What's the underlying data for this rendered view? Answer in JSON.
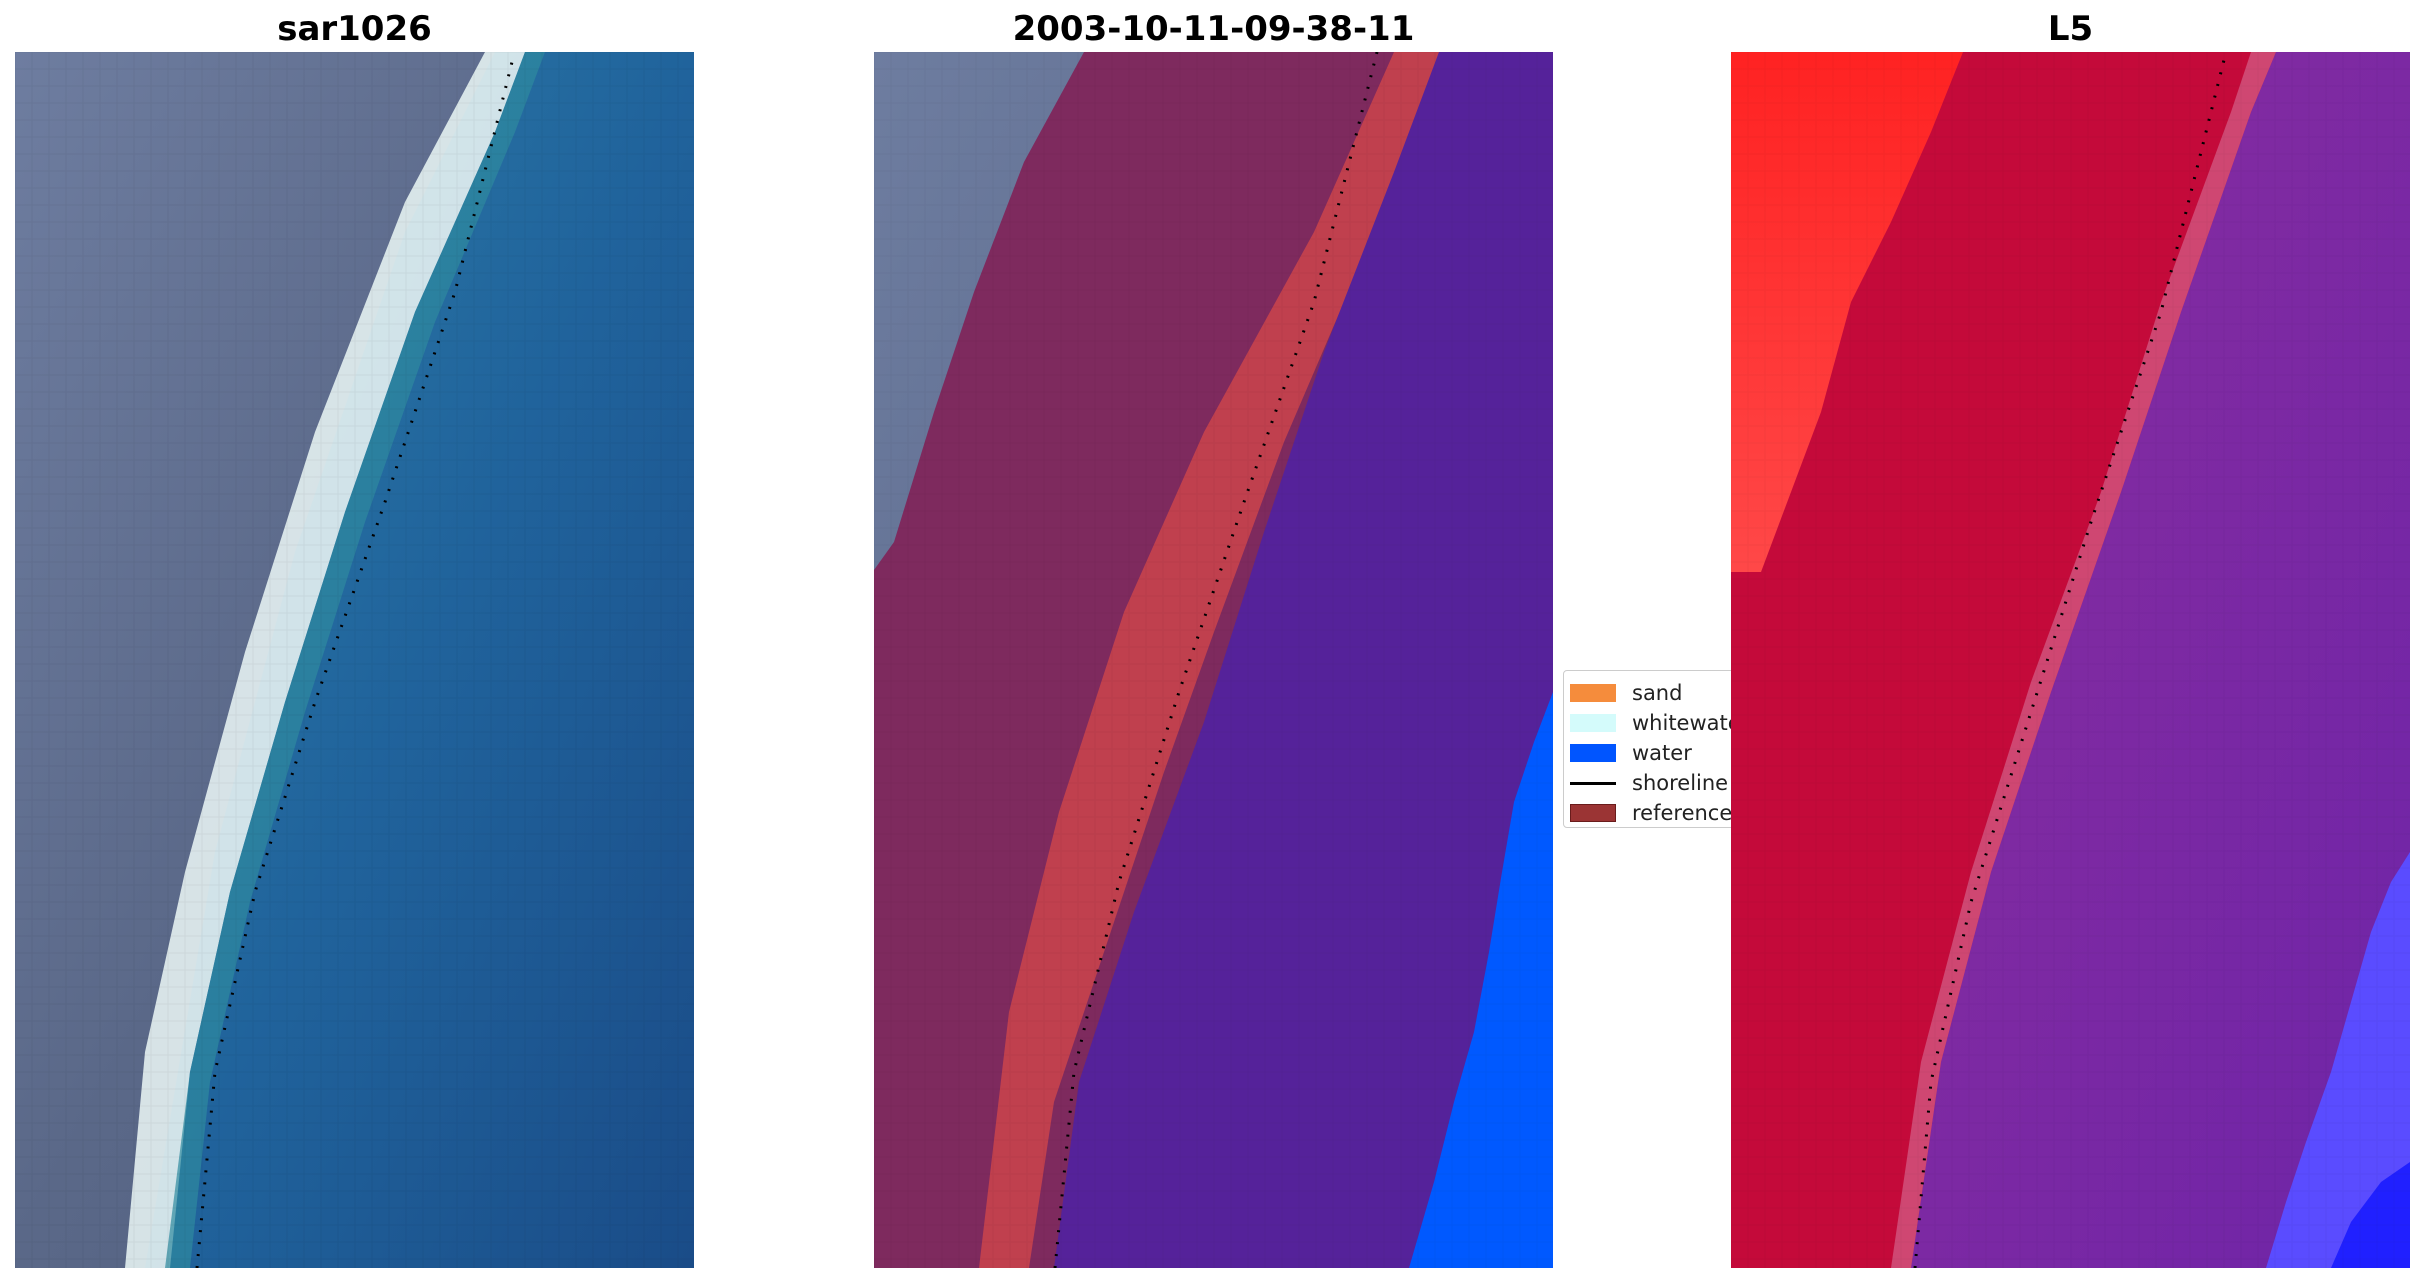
{
  "panels": [
    {
      "title": "sar1026"
    },
    {
      "title": "2003-10-11-09-38-11"
    },
    {
      "title": "L5"
    }
  ],
  "legend": {
    "items": [
      {
        "label": "sand",
        "color": "#f58c3c",
        "kind": "patch"
      },
      {
        "label": "whitewater",
        "color": "#d4fbfb",
        "kind": "patch"
      },
      {
        "label": "water",
        "color": "#0055ff",
        "kind": "patch"
      },
      {
        "label": "shoreline",
        "color": "#000000",
        "kind": "line"
      },
      {
        "label": "reference",
        "color": "#9b3434",
        "kind": "patch"
      }
    ]
  },
  "colors": {
    "land_rgb": "#5f6d8c",
    "surf_rgb": "#e8f2f2",
    "water_rgb": "#23669e",
    "land_class": "#7e2a5e",
    "reference_band": "#c0404e",
    "water_class": "#55229a",
    "water_blue": "#0059ff",
    "land_red": "#ff2a2a",
    "sand_index": "#c40a3a",
    "water_index": "#7d2aa8"
  }
}
